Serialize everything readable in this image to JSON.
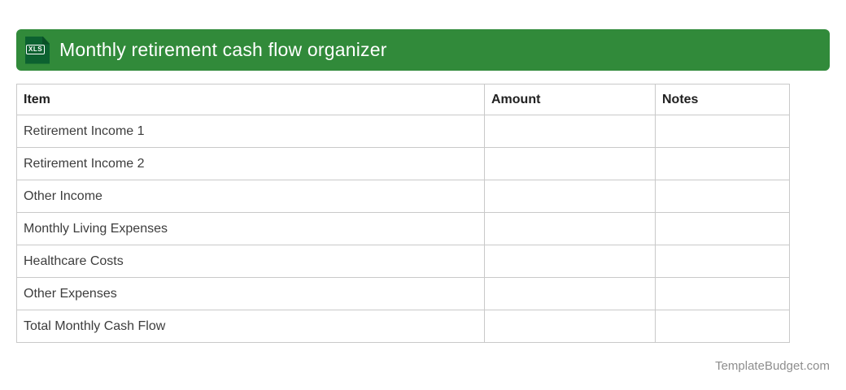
{
  "header": {
    "title": "Monthly retirement cash flow organizer",
    "icon_label": "XLS",
    "bar_color": "#318a3a",
    "icon_color": "#0c6130"
  },
  "table": {
    "columns": [
      {
        "label": "Item"
      },
      {
        "label": "Amount"
      },
      {
        "label": "Notes"
      }
    ],
    "rows": [
      {
        "item": "Retirement Income 1",
        "amount": "",
        "notes": ""
      },
      {
        "item": "Retirement Income 2",
        "amount": "",
        "notes": ""
      },
      {
        "item": "Other Income",
        "amount": "",
        "notes": ""
      },
      {
        "item": "Monthly Living Expenses",
        "amount": "",
        "notes": ""
      },
      {
        "item": "Healthcare Costs",
        "amount": "",
        "notes": ""
      },
      {
        "item": "Other Expenses",
        "amount": "",
        "notes": ""
      },
      {
        "item": "Total Monthly Cash Flow",
        "amount": "",
        "notes": ""
      }
    ]
  },
  "footer": {
    "brand": "TemplateBudget.com"
  }
}
